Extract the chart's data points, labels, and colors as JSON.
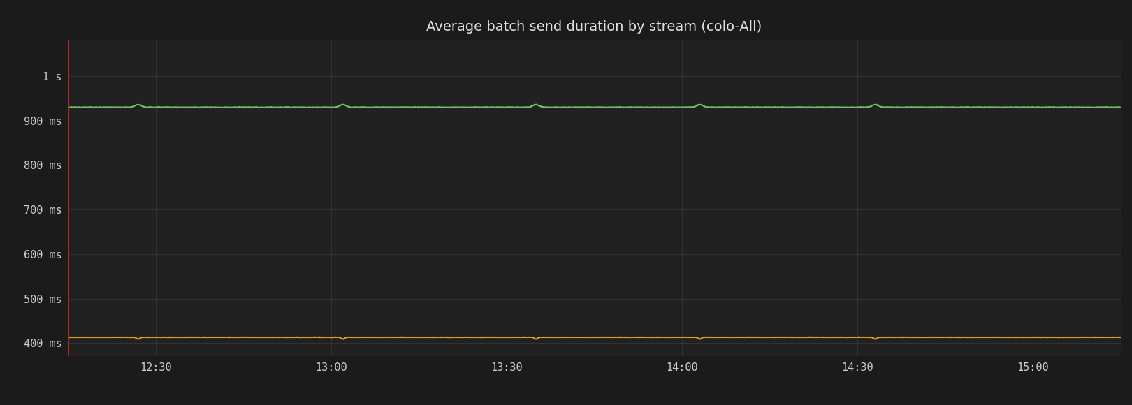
{
  "title": "Average batch send duration by stream (colo-All)",
  "background_color": "#1b1b1b",
  "plot_bg_color": "#212121",
  "grid_color": "#444444",
  "text_color": "#cccccc",
  "title_color": "#e0e0e0",
  "title_fontsize": 14,
  "tick_fontsize": 11,
  "x_tick_labels": [
    "12:30",
    "13:00",
    "13:30",
    "14:00",
    "14:30",
    "15:00"
  ],
  "ylim_low_ms": 370,
  "ylim_high_ms": 1080,
  "ytick_values_ms": [
    400,
    500,
    600,
    700,
    800,
    900,
    1000
  ],
  "ytick_labels": [
    "400 ms",
    "500 ms",
    "600 ms",
    "700 ms",
    "800 ms",
    "900 ms",
    "1 s"
  ],
  "green_line_value_ms": 930,
  "orange_line_value_ms": 413,
  "green_color": "#73bf69",
  "orange_color": "#e5a126",
  "red_line_color": "#cc2222",
  "line_width": 1.4,
  "total_points": 3600,
  "total_minutes": 180,
  "x_tick_positions_min": [
    15,
    45,
    75,
    105,
    135,
    165
  ]
}
